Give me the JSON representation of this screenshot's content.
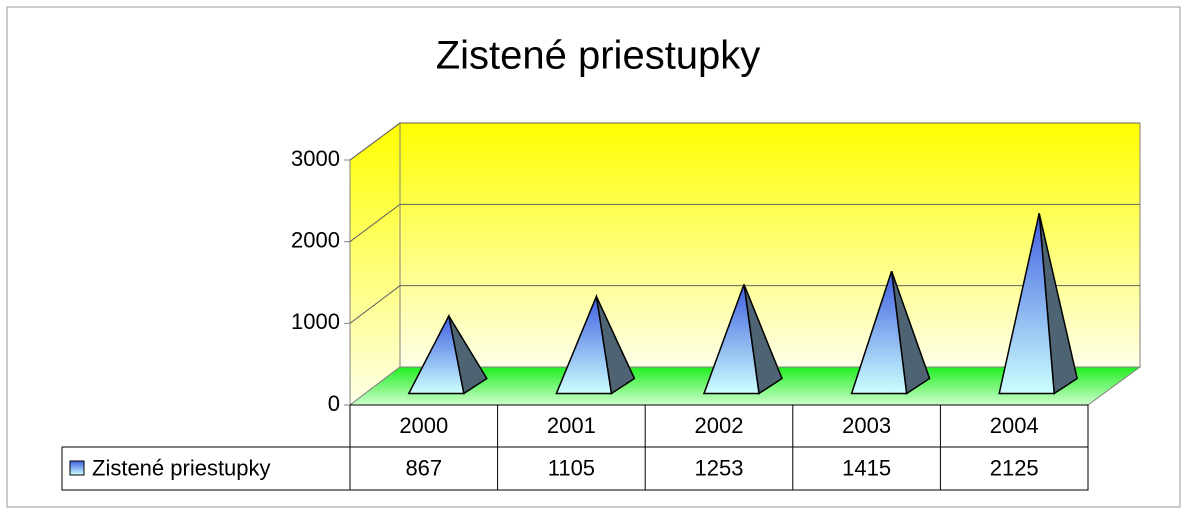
{
  "chart_data": {
    "type": "pyramid3d",
    "title": "Zistené priestupky",
    "categories": [
      "2000",
      "2001",
      "2002",
      "2003",
      "2004"
    ],
    "series": [
      {
        "name": "Zistené priestupky",
        "color": "#4f74e8",
        "values": [
          867,
          1105,
          1253,
          1415,
          2125
        ]
      }
    ],
    "ylim": [
      0,
      3000
    ],
    "yticks": [
      0,
      1000,
      2000,
      3000
    ],
    "grid": true,
    "data_table": true
  }
}
